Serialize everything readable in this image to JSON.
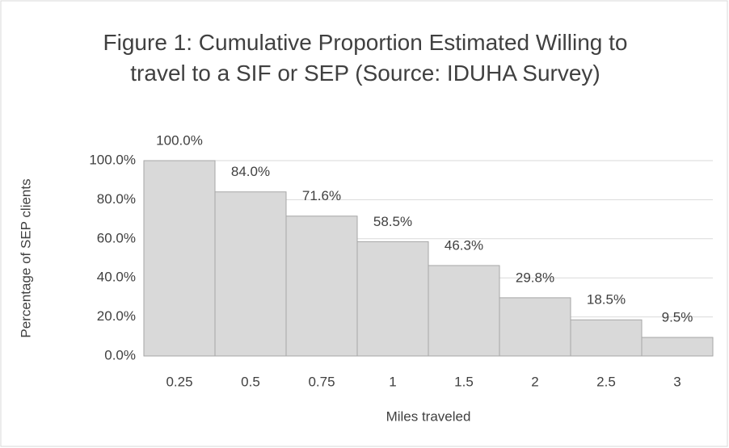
{
  "chart_data": {
    "type": "bar",
    "title": "Figure 1: Cumulative Proportion Estimated Willing to travel to a SIF or SEP (Source: IDUHA Survey)",
    "x_label": "Miles traveled",
    "y_label": "Percentage of SEP clients",
    "categories": [
      "0.25",
      "0.5",
      "0.75",
      "1",
      "1.5",
      "2",
      "2.5",
      "3"
    ],
    "values": [
      100,
      84,
      71.6,
      58.5,
      46.3,
      29.8,
      18.5,
      9.5
    ],
    "value_labels": [
      "100.0%",
      "84.0%",
      "71.6%",
      "58.5%",
      "46.3%",
      "29.8%",
      "18.5%",
      "9.5%"
    ],
    "color": "#d9d9d9",
    "ylim": [
      0,
      100
    ],
    "yticks": [
      {
        "value": 0,
        "label": "0.0%"
      },
      {
        "value": 20,
        "label": "20.0%"
      },
      {
        "value": 40,
        "label": "40.0%"
      },
      {
        "value": 60,
        "label": "60.0%"
      },
      {
        "value": 80,
        "label": "80.0%"
      },
      {
        "value": 100,
        "label": "100.0%"
      }
    ],
    "grid": true
  }
}
